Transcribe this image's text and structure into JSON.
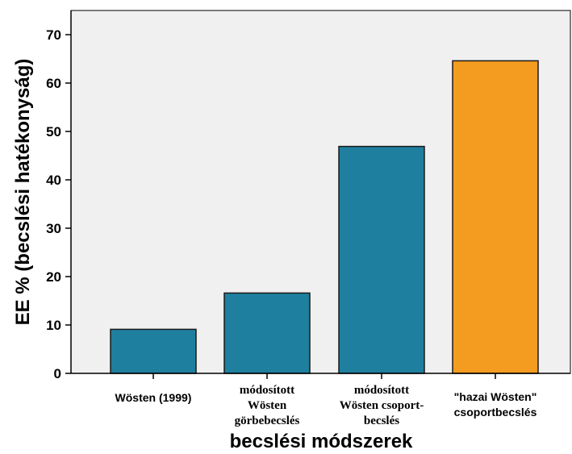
{
  "chart_data": {
    "type": "bar",
    "categories": [
      [
        "Wösten (1999)"
      ],
      [
        "módosított",
        "Wösten",
        "görbebecslés"
      ],
      [
        "módosított",
        "Wösten csoport-",
        "becslés"
      ],
      [
        "\"hazai Wösten\"",
        "csoportbecslés"
      ]
    ],
    "values": [
      9.1,
      16.6,
      46.9,
      64.6
    ],
    "bar_colors": [
      "#1f7f9f",
      "#1f7f9f",
      "#1f7f9f",
      "#f39c1f"
    ],
    "category_fonts": [
      "sans",
      "serif",
      "serif",
      "sans"
    ],
    "xlabel": "becslési módszerek",
    "ylabel": "EE % (becslési hatékonyság)",
    "ylim": [
      0,
      75
    ],
    "yticks": [
      0,
      10,
      20,
      30,
      40,
      50,
      60,
      70
    ],
    "plot_background": "#f0f0f0",
    "grid": false
  }
}
